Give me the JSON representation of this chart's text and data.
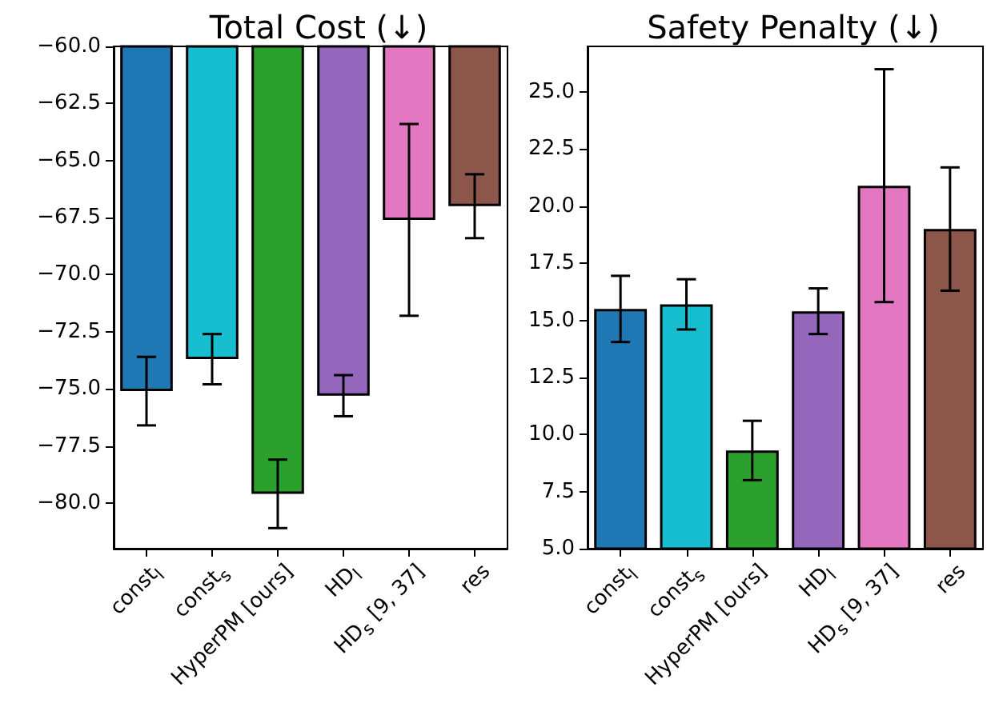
{
  "chart_data": [
    {
      "type": "bar",
      "title": "Total Cost (↓)",
      "categories": [
        "const$_{l}$",
        "const$_{s}$",
        "HyperPM [ours]",
        "HD$_{l}$",
        "HD$_{s}$ [9, 37]",
        "res"
      ],
      "values": [
        -75.1,
        -73.7,
        -79.6,
        -75.3,
        -67.6,
        -67.0
      ],
      "errors": [
        1.5,
        1.1,
        1.5,
        0.9,
        4.2,
        1.4
      ],
      "colors": [
        "#1f77b4",
        "#17becf",
        "#2ca02c",
        "#9467bd",
        "#e377c2",
        "#8c564b"
      ],
      "ylim": [
        -82,
        -60
      ],
      "yticks": [
        {
          "value": -80,
          "label": "−80.0"
        },
        {
          "value": -77.5,
          "label": "−77.5"
        },
        {
          "value": -75,
          "label": "−75.0"
        },
        {
          "value": -72.5,
          "label": "−72.5"
        },
        {
          "value": -70,
          "label": "−70.0"
        },
        {
          "value": -67.5,
          "label": "−67.5"
        },
        {
          "value": -65,
          "label": "−65.0"
        },
        {
          "value": -62.5,
          "label": "−62.5"
        },
        {
          "value": -60,
          "label": "−60.0"
        }
      ],
      "grid": false
    },
    {
      "type": "bar",
      "title": "Safety Penalty (↓)",
      "categories": [
        "const$_{l}$",
        "const$_{s}$",
        "HyperPM [ours]",
        "HD$_{l}$",
        "HD$_{s}$ [9, 37]",
        "res"
      ],
      "values": [
        15.5,
        15.7,
        9.3,
        15.4,
        20.9,
        19.0
      ],
      "errors": [
        1.45,
        1.1,
        1.3,
        1.0,
        5.1,
        2.7
      ],
      "colors": [
        "#1f77b4",
        "#17becf",
        "#2ca02c",
        "#9467bd",
        "#e377c2",
        "#8c564b"
      ],
      "ylim": [
        5,
        27
      ],
      "yticks": [
        {
          "value": 5,
          "label": "5.0"
        },
        {
          "value": 7.5,
          "label": "7.5"
        },
        {
          "value": 10,
          "label": "10.0"
        },
        {
          "value": 12.5,
          "label": "12.5"
        },
        {
          "value": 15,
          "label": "15.0"
        },
        {
          "value": 17.5,
          "label": "17.5"
        },
        {
          "value": 20,
          "label": "20.0"
        },
        {
          "value": 22.5,
          "label": "22.5"
        },
        {
          "value": 25,
          "label": "25.0"
        }
      ],
      "grid": false
    }
  ]
}
